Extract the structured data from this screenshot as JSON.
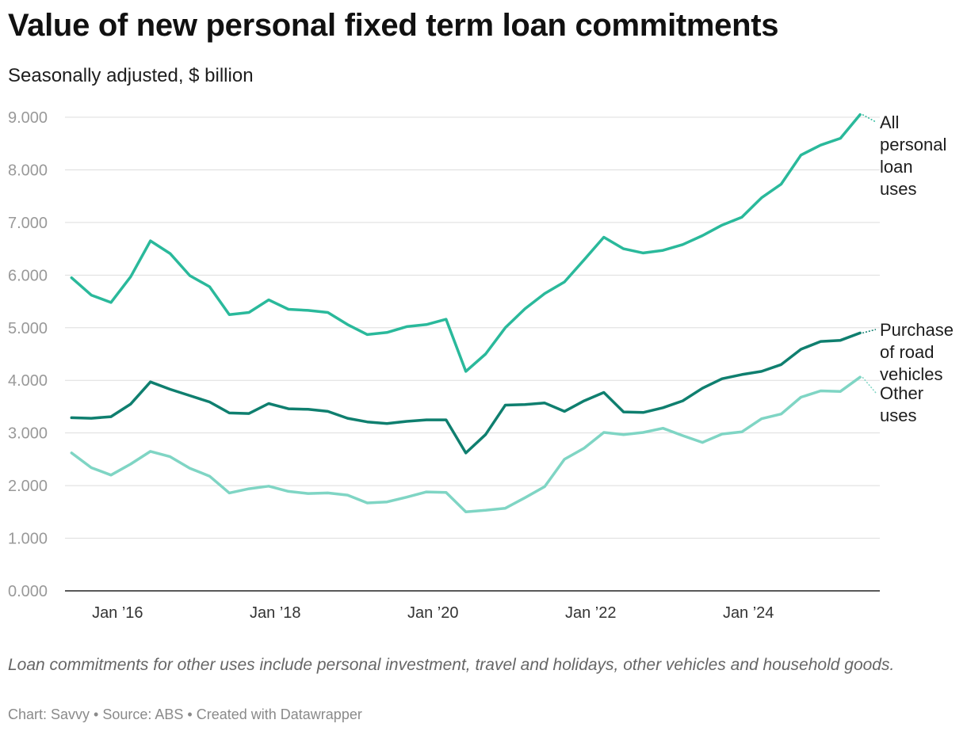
{
  "title": "Value of new personal fixed term loan commitments",
  "subtitle": "Seasonally adjusted, $ billion",
  "notes": "Loan commitments for other uses include personal investment, travel and holidays, other vehicles and household goods.",
  "footer": {
    "chart_credit": "Chart: Savvy",
    "separator": " • ",
    "source": "Source: ABS",
    "created": "Created with Datawrapper"
  },
  "colors": {
    "all_personal": "#2ab99b",
    "road_vehicles": "#0f7f6f",
    "other_uses": "#7fd5c4",
    "grid": "#dddddd",
    "tick_text": "#999999"
  },
  "chart_data": {
    "type": "line",
    "title": "Value of new personal fixed term loan commitments",
    "subtitle": "Seasonally adjusted, $ billion",
    "xlabel": "",
    "ylabel": "",
    "ylim": [
      0,
      9
    ],
    "y_ticks": [
      "0.000",
      "1.000",
      "2.000",
      "3.000",
      "4.000",
      "5.000",
      "6.000",
      "7.000",
      "8.000",
      "9.000"
    ],
    "x_ticks": [
      "Jan ’16",
      "Jan ’18",
      "Jan ’20",
      "Jan ’22",
      "Jan ’24"
    ],
    "x_tick_dates": [
      "2016-01",
      "2018-01",
      "2020-01",
      "2022-01",
      "2024-01"
    ],
    "xlim": [
      "2015-05",
      "2025-09"
    ],
    "grid": true,
    "legend": "inline labels at right end of lines",
    "x": [
      "2015-06",
      "2015-09",
      "2015-12",
      "2016-03",
      "2016-06",
      "2016-09",
      "2016-12",
      "2017-03",
      "2017-06",
      "2017-09",
      "2017-12",
      "2018-03",
      "2018-06",
      "2018-09",
      "2018-12",
      "2019-03",
      "2019-06",
      "2019-09",
      "2019-12",
      "2020-03",
      "2020-06",
      "2020-09",
      "2020-12",
      "2021-03",
      "2021-06",
      "2021-09",
      "2021-12",
      "2022-03",
      "2022-06",
      "2022-09",
      "2022-12",
      "2023-03",
      "2023-06",
      "2023-09",
      "2023-12",
      "2024-03",
      "2024-06",
      "2024-09",
      "2024-12",
      "2025-03",
      "2025-06"
    ],
    "series": [
      {
        "name": "All personal loan uses",
        "label_lines": [
          "All",
          "personal",
          "loan",
          "uses"
        ],
        "values": [
          5.95,
          5.62,
          5.48,
          5.97,
          6.65,
          6.41,
          5.99,
          5.78,
          5.25,
          5.29,
          5.53,
          5.35,
          5.33,
          5.29,
          5.06,
          4.87,
          4.91,
          5.02,
          5.06,
          5.16,
          4.17,
          4.5,
          5.0,
          5.36,
          5.65,
          5.87,
          6.29,
          6.72,
          6.5,
          6.42,
          6.47,
          6.58,
          6.75,
          6.95,
          7.1,
          7.47,
          7.73,
          8.28,
          8.47,
          8.6,
          9.05
        ]
      },
      {
        "name": "Purchase of road vehicles",
        "label_lines": [
          "Purchase",
          "of road",
          "vehicles"
        ],
        "values": [
          3.29,
          3.28,
          3.31,
          3.55,
          3.97,
          3.83,
          3.71,
          3.59,
          3.38,
          3.37,
          3.56,
          3.46,
          3.45,
          3.41,
          3.28,
          3.21,
          3.18,
          3.22,
          3.25,
          3.25,
          2.62,
          2.97,
          3.53,
          3.54,
          3.57,
          3.41,
          3.61,
          3.77,
          3.4,
          3.39,
          3.48,
          3.61,
          3.85,
          4.03,
          4.11,
          4.17,
          4.3,
          4.59,
          4.74,
          4.76,
          4.9
        ]
      },
      {
        "name": "Other uses",
        "label_lines": [
          "Other",
          "uses"
        ],
        "values": [
          2.62,
          2.34,
          2.2,
          2.41,
          2.65,
          2.55,
          2.33,
          2.18,
          1.86,
          1.94,
          1.99,
          1.89,
          1.85,
          1.86,
          1.82,
          1.67,
          1.69,
          1.78,
          1.88,
          1.87,
          1.5,
          1.53,
          1.57,
          1.77,
          1.98,
          2.5,
          2.71,
          3.01,
          2.97,
          3.01,
          3.09,
          2.95,
          2.82,
          2.98,
          3.02,
          3.27,
          3.36,
          3.68,
          3.8,
          3.79,
          4.06
        ]
      }
    ]
  }
}
